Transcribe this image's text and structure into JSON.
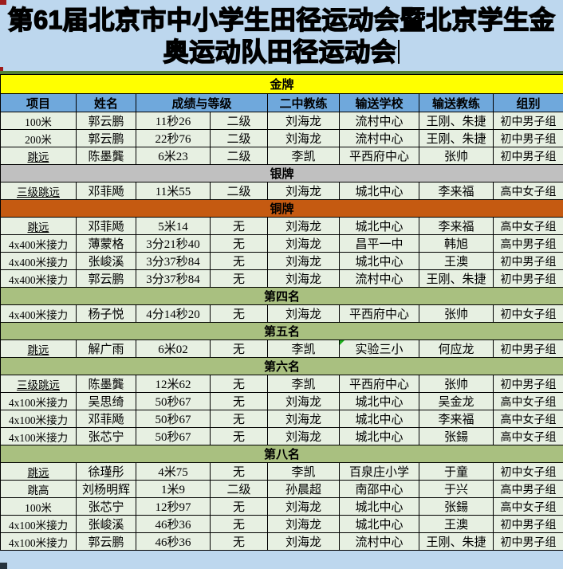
{
  "page": {
    "background": "#bdd7ee",
    "rule_color": "#548235",
    "artifact_red": "#9e1b1b",
    "artifact_dark": "#26333d"
  },
  "title": {
    "line1": "第61届北京市中小学生田径运动会暨北京学生金",
    "line2": "奥运动队田径运动会"
  },
  "table": {
    "header_bg": "#6fa8dc",
    "row_bg": "#e7f0e2",
    "border_color": "#000000",
    "columns": [
      {
        "label": "项目",
        "span": 1
      },
      {
        "label": "姓名",
        "span": 1
      },
      {
        "label": "成绩与等级",
        "span": 2
      },
      {
        "label": "二中教练",
        "span": 1
      },
      {
        "label": "输送学校",
        "span": 1
      },
      {
        "label": "输送教练",
        "span": 1
      },
      {
        "label": "组别",
        "span": 1
      }
    ],
    "sections": [
      {
        "label": "金牌",
        "band_color": "#ffff00",
        "rows": [
          [
            "100米",
            "郭云鹏",
            "11秒26",
            "二级",
            "刘海龙",
            "流村中心",
            "王刚、朱捷",
            "初中男子组"
          ],
          [
            "200米",
            "郭云鹏",
            "22秒76",
            "二级",
            "刘海龙",
            "流村中心",
            "王刚、朱捷",
            "初中男子组"
          ],
          [
            "跳远",
            "陈墨龔",
            "6米23",
            "二级",
            "李凯",
            "平西府中心",
            "张帅",
            "初中男子组"
          ]
        ]
      },
      {
        "label": "银牌",
        "band_color": "#c0c0c0",
        "rows": [
          [
            "三级跳远",
            "邓菲飏",
            "11米55",
            "二级",
            "刘海龙",
            "城北中心",
            "李来福",
            "高中女子组"
          ]
        ]
      },
      {
        "label": "铜牌",
        "band_color": "#c55a11",
        "rows": [
          [
            "跳远",
            "邓菲飏",
            "5米14",
            "无",
            "刘海龙",
            "城北中心",
            "李来福",
            "高中女子组"
          ],
          [
            "4x400米接力",
            "薄蒙格",
            "3分21秒40",
            "无",
            "刘海龙",
            "昌平一中",
            "韩旭",
            "高中男子组"
          ],
          [
            "4x400米接力",
            "张峻溪",
            "3分37秒84",
            "无",
            "刘海龙",
            "城北中心",
            "王澳",
            "初中男子组"
          ],
          [
            "4x400米接力",
            "郭云鹏",
            "3分37秒84",
            "无",
            "刘海龙",
            "流村中心",
            "王刚、朱捷",
            "初中男子组"
          ]
        ]
      },
      {
        "label": "第四名",
        "band_color": "#a9c080",
        "rows": [
          [
            "4x400米接力",
            "杨子悦",
            "4分14秒20",
            "无",
            "刘海龙",
            "平西府中心",
            "张帅",
            "初中女子组"
          ]
        ]
      },
      {
        "label": "第五名",
        "band_color": "#a9c080",
        "rows": [
          [
            "跳远",
            "解广雨",
            "6米02",
            "无",
            "李凯",
            "实验三小",
            "何应龙",
            "初中男子组"
          ]
        ]
      },
      {
        "label": "第六名",
        "band_color": "#a9c080",
        "rows": [
          [
            "三级跳远",
            "陈墨龔",
            "12米62",
            "无",
            "李凯",
            "平西府中心",
            "张帅",
            "初中男子组"
          ],
          [
            "4x100米接力",
            "吴思绮",
            "50秒67",
            "无",
            "刘海龙",
            "城北中心",
            "吴金龙",
            "高中女子组"
          ],
          [
            "4x100米接力",
            "邓菲飏",
            "50秒67",
            "无",
            "刘海龙",
            "城北中心",
            "李来福",
            "高中女子组"
          ],
          [
            "4x100米接力",
            "张芯宁",
            "50秒67",
            "无",
            "刘海龙",
            "城北中心",
            "张鍚",
            "高中女子组"
          ]
        ]
      },
      {
        "label": "第八名",
        "band_color": "#a9c080",
        "rows": [
          [
            "跳远",
            "徐瑾彤",
            "4米75",
            "无",
            "李凯",
            "百泉庄小学",
            "于童",
            "初中女子组"
          ],
          [
            "跳高",
            "刘杨明辉",
            "1米9",
            "二级",
            "孙晨超",
            "南邵中心",
            "于兴",
            "高中男子组"
          ],
          [
            "100米",
            "张芯宁",
            "12秒97",
            "无",
            "刘海龙",
            "城北中心",
            "张鍚",
            "高中女子组"
          ],
          [
            "4x100米接力",
            "张峻溪",
            "46秒36",
            "无",
            "刘海龙",
            "城北中心",
            "王澳",
            "初中男子组"
          ],
          [
            "4x100米接力",
            "郭云鹏",
            "46秒36",
            "无",
            "刘海龙",
            "流村中心",
            "王刚、朱捷",
            "初中男子组"
          ]
        ]
      }
    ],
    "annotations": {
      "underlined_event_rows": [
        [
          0,
          2
        ],
        [
          1,
          0
        ],
        [
          2,
          0
        ],
        [
          4,
          0
        ],
        [
          5,
          0
        ],
        [
          6,
          0
        ]
      ],
      "green_triangle_cell": {
        "section": 4,
        "row": 0,
        "col": 5,
        "color": "#1daf1d"
      }
    }
  }
}
